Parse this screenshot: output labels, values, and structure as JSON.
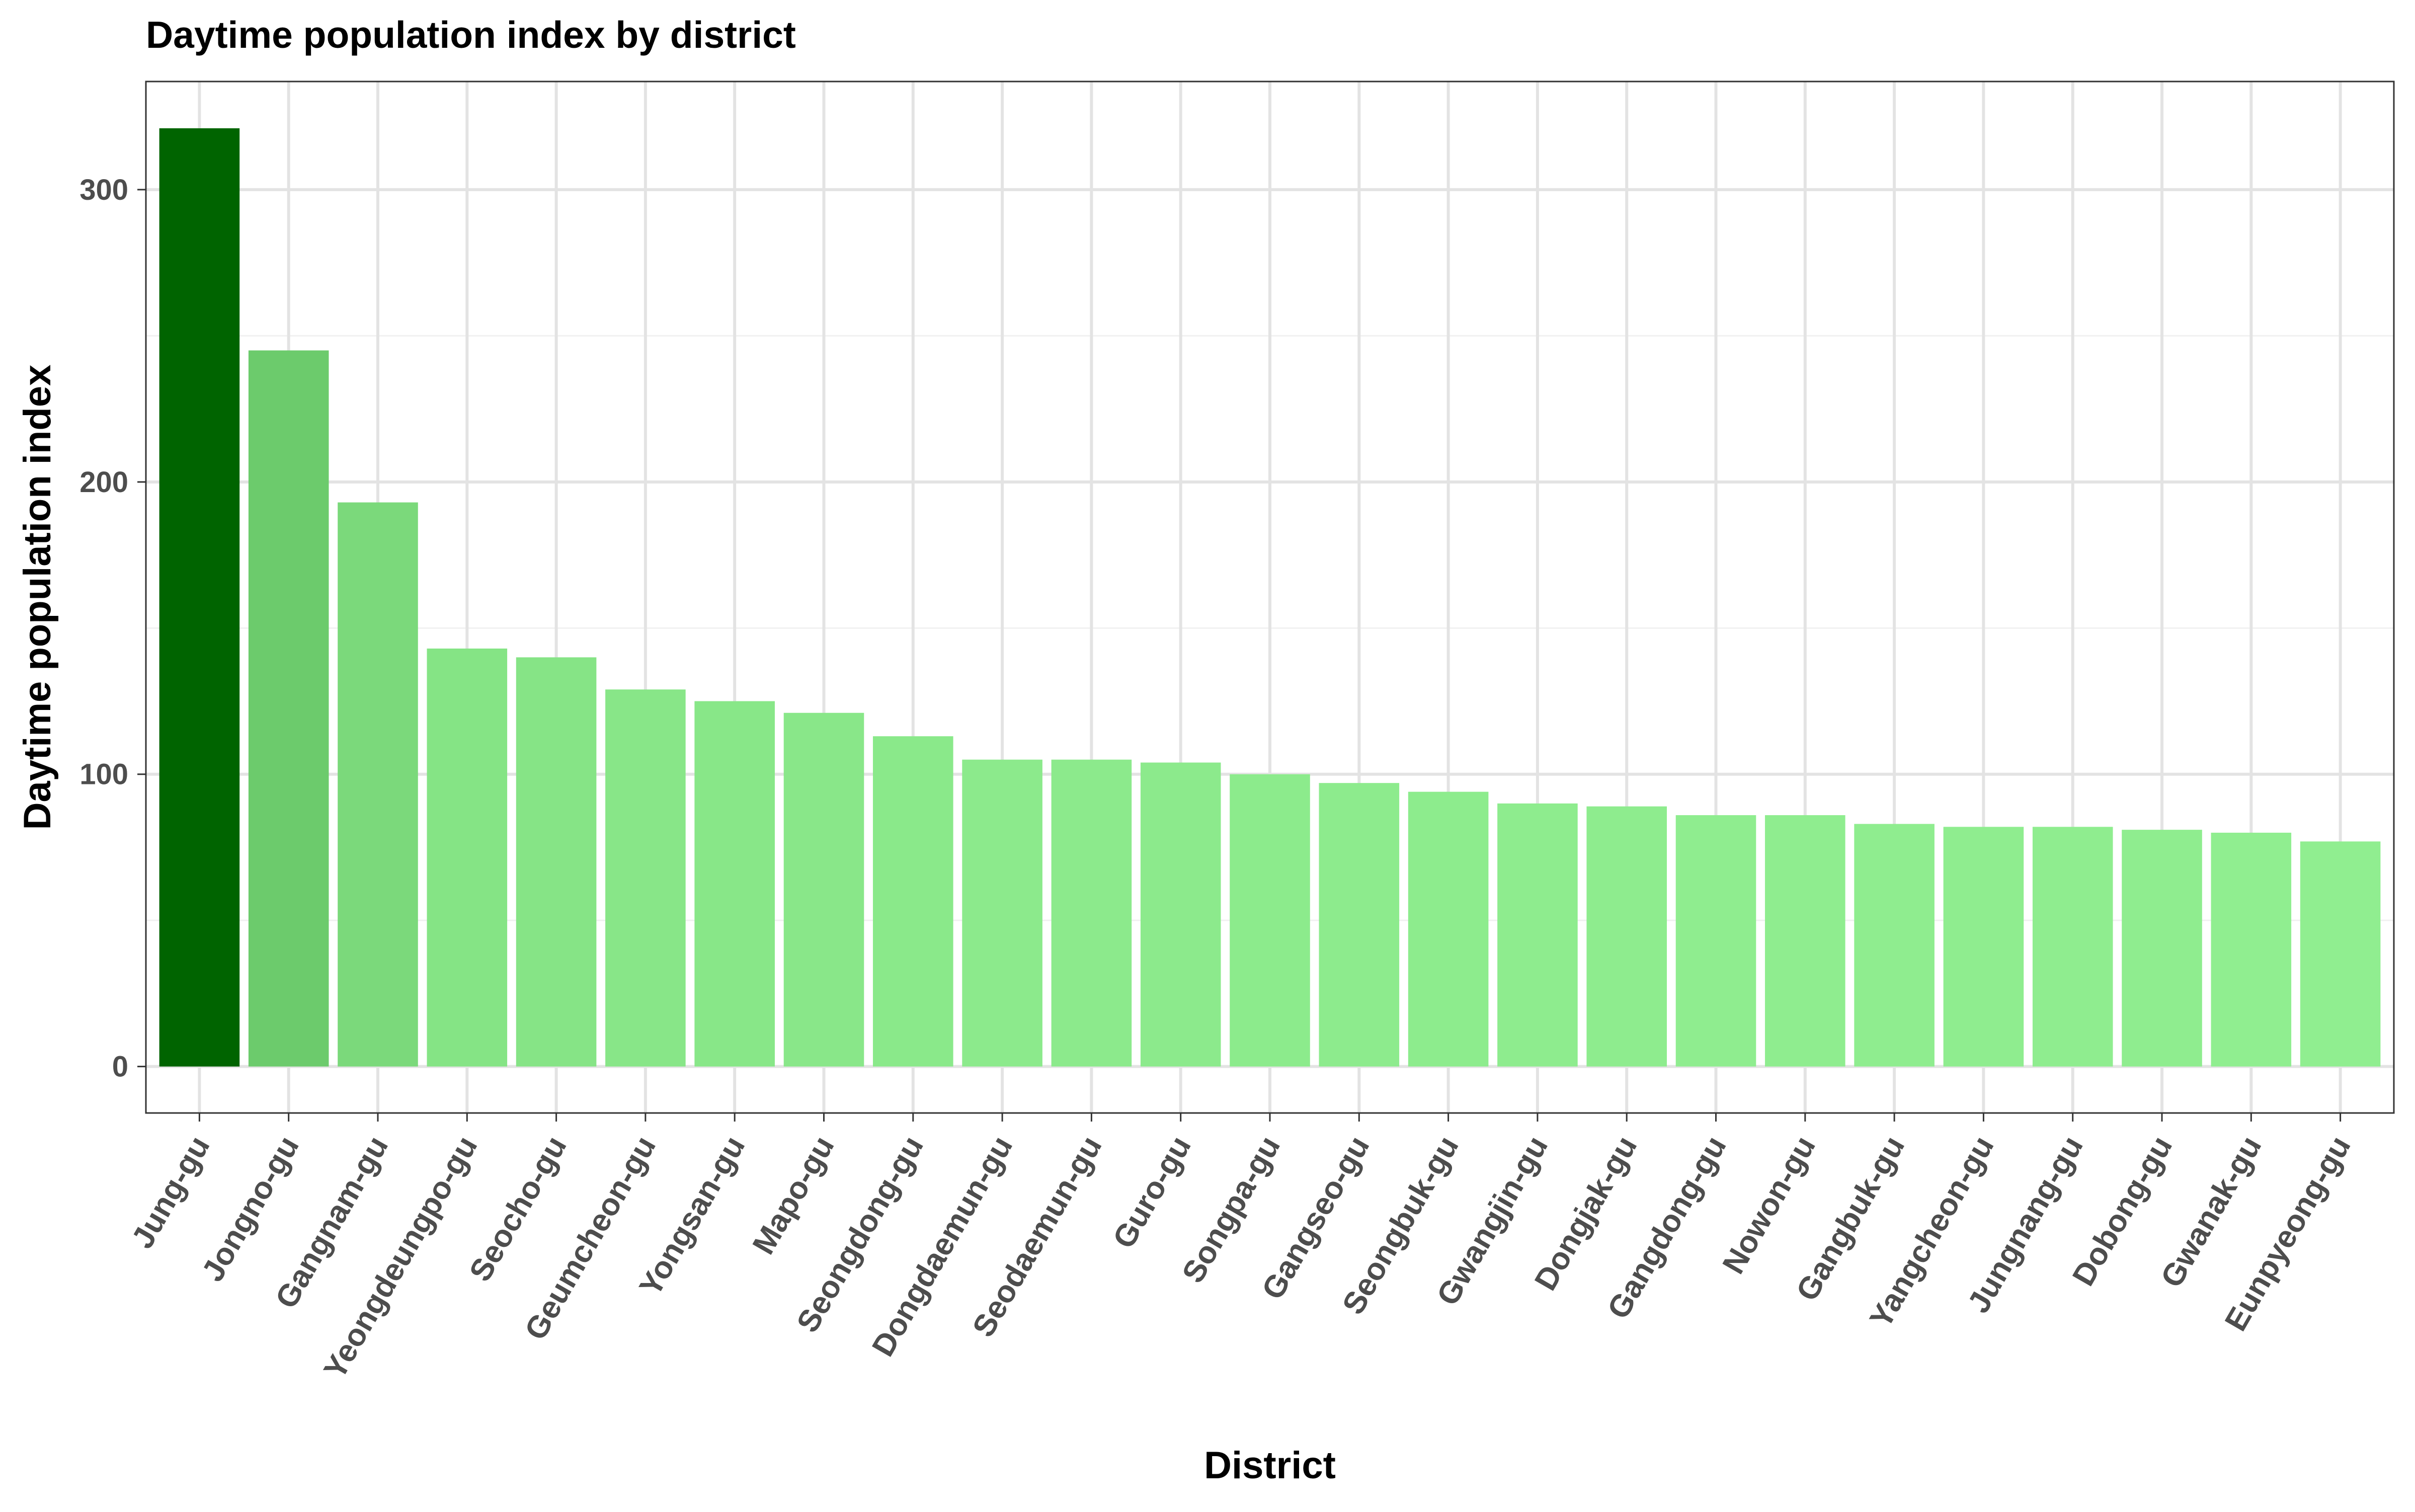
{
  "chart_data": {
    "type": "bar",
    "title": "Daytime population index by district",
    "xlabel": "District",
    "ylabel": "Daytime population index",
    "categories": [
      "Jung-gu",
      "Jongno-gu",
      "Gangnam-gu",
      "Yeongdeungpo-gu",
      "Seocho-gu",
      "Geumcheon-gu",
      "Yongsan-gu",
      "Mapo-gu",
      "Seongdong-gu",
      "Dongdaemun-gu",
      "Seodaemun-gu",
      "Guro-gu",
      "Songpa-gu",
      "Gangseo-gu",
      "Seongbuk-gu",
      "Gwangjin-gu",
      "Dongjak-gu",
      "Gangdong-gu",
      "Nowon-gu",
      "Gangbuk-gu",
      "Yangcheon-gu",
      "Jungnang-gu",
      "Dobong-gu",
      "Gwanak-gu",
      "Eunpyeong-gu"
    ],
    "values": [
      321,
      245,
      193,
      143,
      140,
      129,
      125,
      121,
      113,
      105,
      105,
      104,
      100,
      97,
      94,
      90,
      89,
      86,
      86,
      83,
      82,
      82,
      81,
      80,
      77
    ],
    "yticks": [
      0,
      100,
      200,
      300
    ],
    "ylim": [
      -15.9,
      337
    ],
    "grid": true,
    "legend": "none",
    "colors": {
      "max_fill": "#006400",
      "min_fill": "#90ee90",
      "grid_major": "#e3e3e3",
      "grid_minor": "#f1f1f1",
      "panel_border": "#333333",
      "tick_text": "#4d4d4d"
    }
  }
}
